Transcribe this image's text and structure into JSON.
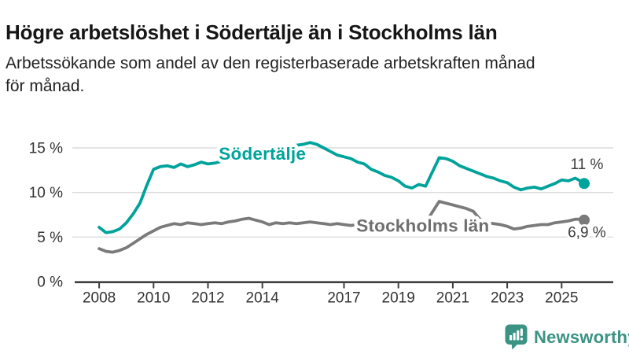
{
  "header": {
    "title": "Högre arbetslöshet i Södertälje än i Stockholms län",
    "subtitle_lines": [
      "Arbetssökande som andel av den registerbaserade arbetskraften månad",
      "för månad."
    ]
  },
  "branding": {
    "name": "Newsworthy",
    "logo_icon": "bar-chart-speech-bubble-icon",
    "color": "#3a9383"
  },
  "chart_data": {
    "type": "line",
    "title": "Högre arbetslöshet i Södertälje än i Stockholms län",
    "subtitle": "Arbetssökande som andel av den registerbaserade arbetskraften månad för månad.",
    "xlabel": "",
    "ylabel": "",
    "unit": "%",
    "grid": "horizontal",
    "legend_position": "inline-labels",
    "axis": {
      "x_min": 2007.1,
      "x_max": 2026.9,
      "y_min": 0,
      "y_grid_max": 15
    },
    "colors": {
      "grid": "#dcdcdc",
      "axis": "#3e3e3e",
      "tick_text": "#333333",
      "annotation_text": "#3c3c3c"
    },
    "y_ticks": [
      {
        "value": 0,
        "label": "0 %"
      },
      {
        "value": 5,
        "label": "5 %"
      },
      {
        "value": 10,
        "label": "10 %"
      },
      {
        "value": 15,
        "label": "15 %"
      }
    ],
    "x_ticks": [
      {
        "year": 2008,
        "label": "2008"
      },
      {
        "year": 2010,
        "label": "2010"
      },
      {
        "year": 2012,
        "label": "2012"
      },
      {
        "year": 2014,
        "label": "2014"
      },
      {
        "year": 2017,
        "label": "2017"
      },
      {
        "year": 2019,
        "label": "2019"
      },
      {
        "year": 2021,
        "label": "2021"
      },
      {
        "year": 2023,
        "label": "2023"
      },
      {
        "year": 2025,
        "label": "2025"
      }
    ],
    "series": [
      {
        "name": "Södertälje",
        "color": "#00a39b",
        "label_color": "#00a39b",
        "label_pos": {
          "year": 2014.0,
          "value": 14.35
        },
        "end_label": {
          "text": "11 %",
          "year": 2025.93,
          "value": 13.1
        },
        "end_value": 11.0,
        "points": [
          [
            2008.0,
            6.1
          ],
          [
            2008.25,
            5.5
          ],
          [
            2008.5,
            5.6
          ],
          [
            2008.75,
            5.9
          ],
          [
            2009.0,
            6.6
          ],
          [
            2009.25,
            7.6
          ],
          [
            2009.5,
            8.8
          ],
          [
            2009.75,
            10.8
          ],
          [
            2010.0,
            12.6
          ],
          [
            2010.25,
            12.9
          ],
          [
            2010.5,
            13.0
          ],
          [
            2010.75,
            12.8
          ],
          [
            2011.0,
            13.2
          ],
          [
            2011.25,
            12.9
          ],
          [
            2011.5,
            13.1
          ],
          [
            2011.75,
            13.4
          ],
          [
            2012.0,
            13.2
          ],
          [
            2012.25,
            13.3
          ],
          [
            2012.5,
            13.5
          ],
          [
            2012.75,
            13.6
          ],
          [
            2013.0,
            13.8
          ],
          [
            2013.25,
            14.0
          ],
          [
            2013.5,
            14.3
          ],
          [
            2013.75,
            14.5
          ],
          [
            2014.0,
            14.7
          ],
          [
            2014.25,
            14.9
          ],
          [
            2014.5,
            15.0
          ],
          [
            2014.75,
            15.1
          ],
          [
            2015.0,
            15.2
          ],
          [
            2015.25,
            15.3
          ],
          [
            2015.5,
            15.4
          ],
          [
            2015.75,
            15.6
          ],
          [
            2016.0,
            15.4
          ],
          [
            2016.25,
            15.0
          ],
          [
            2016.5,
            14.6
          ],
          [
            2016.75,
            14.2
          ],
          [
            2017.0,
            14.0
          ],
          [
            2017.25,
            13.8
          ],
          [
            2017.5,
            13.4
          ],
          [
            2017.75,
            13.2
          ],
          [
            2018.0,
            12.6
          ],
          [
            2018.25,
            12.3
          ],
          [
            2018.5,
            11.9
          ],
          [
            2018.75,
            11.7
          ],
          [
            2019.0,
            11.3
          ],
          [
            2019.25,
            10.7
          ],
          [
            2019.5,
            10.5
          ],
          [
            2019.75,
            10.9
          ],
          [
            2020.0,
            10.7
          ],
          [
            2020.25,
            12.3
          ],
          [
            2020.5,
            13.9
          ],
          [
            2020.75,
            13.8
          ],
          [
            2021.0,
            13.5
          ],
          [
            2021.25,
            13.0
          ],
          [
            2021.5,
            12.7
          ],
          [
            2021.75,
            12.4
          ],
          [
            2022.0,
            12.1
          ],
          [
            2022.25,
            11.8
          ],
          [
            2022.5,
            11.6
          ],
          [
            2022.75,
            11.3
          ],
          [
            2023.0,
            11.1
          ],
          [
            2023.25,
            10.6
          ],
          [
            2023.5,
            10.3
          ],
          [
            2023.75,
            10.5
          ],
          [
            2024.0,
            10.6
          ],
          [
            2024.25,
            10.4
          ],
          [
            2024.5,
            10.7
          ],
          [
            2024.75,
            11.0
          ],
          [
            2025.0,
            11.4
          ],
          [
            2025.25,
            11.3
          ],
          [
            2025.5,
            11.6
          ],
          [
            2025.75,
            11.2
          ],
          [
            2025.83,
            11.0
          ]
        ]
      },
      {
        "name": "Stockholms län",
        "color": "#7a7a7a",
        "label_color": "#6e6e6e",
        "label_pos": {
          "year": 2019.9,
          "value": 6.27
        },
        "end_label": {
          "text": "6,9 %",
          "year": 2025.93,
          "value": 5.45
        },
        "end_value": 6.9,
        "points": [
          [
            2008.0,
            3.7
          ],
          [
            2008.25,
            3.4
          ],
          [
            2008.5,
            3.3
          ],
          [
            2008.75,
            3.5
          ],
          [
            2009.0,
            3.8
          ],
          [
            2009.25,
            4.3
          ],
          [
            2009.5,
            4.8
          ],
          [
            2009.75,
            5.3
          ],
          [
            2010.0,
            5.7
          ],
          [
            2010.25,
            6.1
          ],
          [
            2010.5,
            6.3
          ],
          [
            2010.75,
            6.5
          ],
          [
            2011.0,
            6.4
          ],
          [
            2011.25,
            6.6
          ],
          [
            2011.5,
            6.5
          ],
          [
            2011.75,
            6.4
          ],
          [
            2012.0,
            6.5
          ],
          [
            2012.25,
            6.6
          ],
          [
            2012.5,
            6.5
          ],
          [
            2012.75,
            6.7
          ],
          [
            2013.0,
            6.8
          ],
          [
            2013.25,
            7.0
          ],
          [
            2013.5,
            7.1
          ],
          [
            2013.75,
            6.9
          ],
          [
            2014.0,
            6.7
          ],
          [
            2014.25,
            6.4
          ],
          [
            2014.5,
            6.6
          ],
          [
            2014.75,
            6.5
          ],
          [
            2015.0,
            6.6
          ],
          [
            2015.25,
            6.5
          ],
          [
            2015.5,
            6.6
          ],
          [
            2015.75,
            6.7
          ],
          [
            2016.0,
            6.6
          ],
          [
            2016.25,
            6.5
          ],
          [
            2016.5,
            6.4
          ],
          [
            2016.75,
            6.5
          ],
          [
            2017.0,
            6.4
          ],
          [
            2017.25,
            6.3
          ],
          [
            2017.5,
            6.4
          ],
          [
            2017.75,
            6.3
          ],
          [
            2018.0,
            6.4
          ],
          [
            2018.25,
            6.3
          ],
          [
            2018.5,
            6.2
          ],
          [
            2018.75,
            6.3
          ],
          [
            2019.0,
            6.2
          ],
          [
            2019.25,
            6.2
          ],
          [
            2019.5,
            6.3
          ],
          [
            2019.75,
            6.4
          ],
          [
            2020.0,
            6.6
          ],
          [
            2020.25,
            7.8
          ],
          [
            2020.5,
            9.0
          ],
          [
            2020.75,
            8.8
          ],
          [
            2021.0,
            8.6
          ],
          [
            2021.25,
            8.4
          ],
          [
            2021.5,
            8.2
          ],
          [
            2021.75,
            7.9
          ],
          [
            2022.0,
            7.0
          ],
          [
            2022.25,
            6.6
          ],
          [
            2022.5,
            6.5
          ],
          [
            2022.75,
            6.4
          ],
          [
            2023.0,
            6.2
          ],
          [
            2023.25,
            5.9
          ],
          [
            2023.5,
            6.0
          ],
          [
            2023.75,
            6.2
          ],
          [
            2024.0,
            6.3
          ],
          [
            2024.25,
            6.4
          ],
          [
            2024.5,
            6.4
          ],
          [
            2024.75,
            6.6
          ],
          [
            2025.0,
            6.7
          ],
          [
            2025.25,
            6.8
          ],
          [
            2025.5,
            7.0
          ],
          [
            2025.75,
            7.0
          ],
          [
            2025.83,
            6.9
          ]
        ]
      }
    ]
  }
}
